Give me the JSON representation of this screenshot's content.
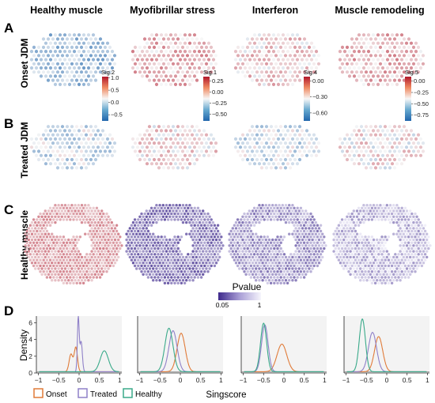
{
  "figure": {
    "columns": [
      "Healthy muscle",
      "Myofibrillar stress",
      "Interferon",
      "Muscle remodeling"
    ],
    "rows": [
      {
        "letter": "A",
        "label": "Onset JDM"
      },
      {
        "letter": "B",
        "label": "Treated JDM"
      },
      {
        "letter": "C",
        "label": "Healthy muscle"
      }
    ],
    "panel_d_letter": "D"
  },
  "colorbars": [
    {
      "title": "Sig.2",
      "ticks": [
        "1.0",
        "0.5",
        "0.0",
        "−0.5"
      ],
      "tick_values": [
        1.0,
        0.5,
        0.0,
        -0.5
      ],
      "range": [
        -0.75,
        1.05
      ]
    },
    {
      "title": "Sig.1",
      "ticks": [
        "0.25",
        "0.00",
        "−0.25",
        "−0.50"
      ],
      "tick_values": [
        0.25,
        0.0,
        -0.25,
        -0.5
      ],
      "range": [
        -0.65,
        0.35
      ]
    },
    {
      "title": "Sig.4",
      "ticks": [
        "0.00",
        "−0.30",
        "−0.60"
      ],
      "tick_values": [
        0.0,
        -0.3,
        -0.6
      ],
      "range": [
        -0.75,
        0.08
      ]
    },
    {
      "title": "Sig.5",
      "ticks": [
        "0.00",
        "−0.25",
        "−0.50",
        "−0.75"
      ],
      "tick_values": [
        0.0,
        -0.25,
        -0.5,
        -0.75
      ],
      "range": [
        -0.88,
        0.1
      ]
    }
  ],
  "pvalue_legend": {
    "title": "Pvalue",
    "min_label": "0.05",
    "max_label": "1"
  },
  "colors": {
    "onset": "#e07b39",
    "treated": "#8f80c8",
    "healthy": "#3aaa8a",
    "diverging_high": "#b2182b",
    "diverging_low": "#2166ac",
    "pvalue_dark": "#3f2a8c"
  },
  "chart_data": {
    "type": "line",
    "ylabel": "Density",
    "xlabel": "Singscore",
    "xlim": [
      -1.05,
      1.05
    ],
    "x_ticks": [
      "−1",
      "−0.5",
      "0",
      "0.5",
      "1"
    ],
    "x_tick_values": [
      -1,
      -0.5,
      0,
      0.5,
      1
    ],
    "ylim": [
      0,
      6.8
    ],
    "y_ticks": [
      "0",
      "2",
      "4",
      "6"
    ],
    "y_tick_values": [
      0,
      2,
      4,
      6
    ],
    "legend": {
      "placement": "bottom",
      "entries": [
        "Onset",
        "Treated",
        "Healthy"
      ]
    },
    "panels": [
      {
        "column": "Healthy muscle",
        "series": [
          {
            "name": "Onset",
            "components": [
              {
                "mu": -0.2,
                "sd": 0.045,
                "h": 2.1
              },
              {
                "mu": -0.08,
                "sd": 0.04,
                "h": 2.9
              }
            ]
          },
          {
            "name": "Treated",
            "components": [
              {
                "mu": -0.02,
                "sd": 0.022,
                "h": 6.4
              },
              {
                "mu": 0.05,
                "sd": 0.03,
                "h": 3.6
              }
            ]
          },
          {
            "name": "Healthy",
            "components": [
              {
                "mu": 0.62,
                "sd": 0.1,
                "h": 2.5
              }
            ]
          }
        ]
      },
      {
        "column": "Myofibrillar stress",
        "series": [
          {
            "name": "Onset",
            "components": [
              {
                "mu": 0.02,
                "sd": 0.1,
                "h": 4.6
              }
            ]
          },
          {
            "name": "Treated",
            "components": [
              {
                "mu": -0.18,
                "sd": 0.1,
                "h": 4.9
              }
            ]
          },
          {
            "name": "Healthy",
            "components": [
              {
                "mu": -0.28,
                "sd": 0.1,
                "h": 5.2
              }
            ]
          }
        ]
      },
      {
        "column": "Interferon",
        "series": [
          {
            "name": "Onset",
            "components": [
              {
                "mu": -0.05,
                "sd": 0.12,
                "h": 3.3
              }
            ]
          },
          {
            "name": "Treated",
            "components": [
              {
                "mu": -0.47,
                "sd": 0.08,
                "h": 5.6
              }
            ]
          },
          {
            "name": "Healthy",
            "components": [
              {
                "mu": -0.5,
                "sd": 0.075,
                "h": 5.8
              }
            ]
          }
        ]
      },
      {
        "column": "Muscle remodeling",
        "series": [
          {
            "name": "Onset",
            "components": [
              {
                "mu": -0.2,
                "sd": 0.1,
                "h": 4.2
              }
            ]
          },
          {
            "name": "Treated",
            "components": [
              {
                "mu": -0.35,
                "sd": 0.1,
                "h": 4.7
              }
            ]
          },
          {
            "name": "Healthy",
            "components": [
              {
                "mu": -0.6,
                "sd": 0.075,
                "h": 6.3
              }
            ]
          }
        ]
      }
    ]
  }
}
